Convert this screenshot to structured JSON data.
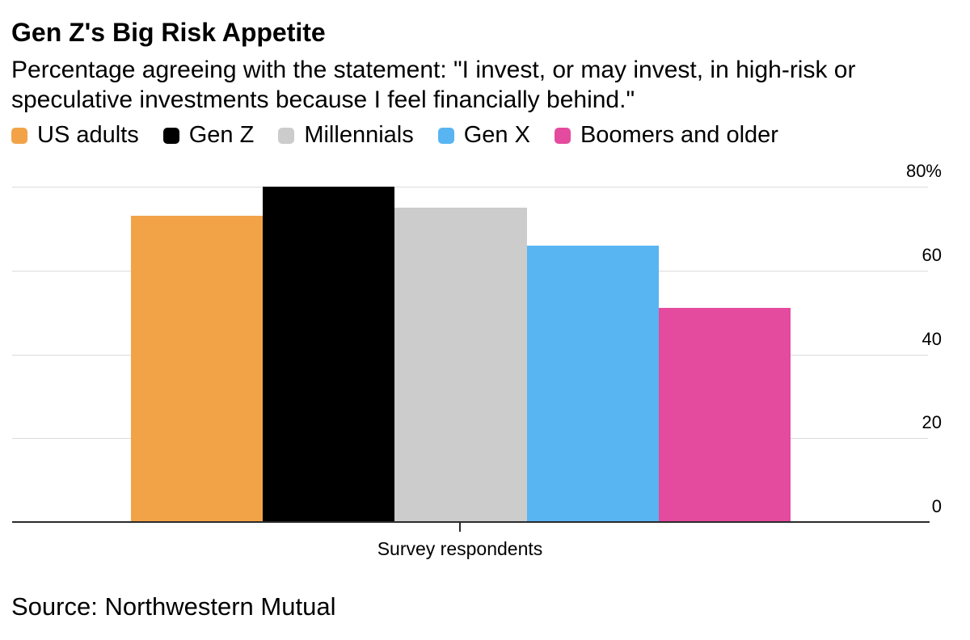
{
  "header": {
    "title": "Gen Z's Big Risk Appetite",
    "subtitle": "Percentage agreeing with the statement: \"I invest, or may invest, in high-risk or speculative investments because I feel financially behind.\""
  },
  "chart_data": {
    "type": "bar",
    "title": "Gen Z's Big Risk Appetite",
    "xlabel": "Survey respondents",
    "ylabel": "",
    "ylim": [
      0,
      80
    ],
    "yticks": [
      0,
      20,
      40,
      60,
      80
    ],
    "ytick_labels": [
      "0",
      "20",
      "40",
      "60",
      "80%"
    ],
    "grid": true,
    "legend_position": "top-left",
    "categories": [
      "Survey respondents"
    ],
    "series": [
      {
        "name": "US adults",
        "color": "#F2A348",
        "values": [
          73
        ]
      },
      {
        "name": "Gen Z",
        "color": "#000000",
        "values": [
          80
        ]
      },
      {
        "name": "Millennials",
        "color": "#CCCCCC",
        "values": [
          75
        ]
      },
      {
        "name": "Gen X",
        "color": "#58B5F2",
        "values": [
          66
        ]
      },
      {
        "name": "Boomers and older",
        "color": "#E44B9E",
        "values": [
          51
        ]
      }
    ],
    "colors": {
      "gridline": "#DBDBDB",
      "axis": "#2B2B2B",
      "text": "#000000",
      "background": "#FFFFFF"
    }
  },
  "source": "Source: Northwestern Mutual"
}
